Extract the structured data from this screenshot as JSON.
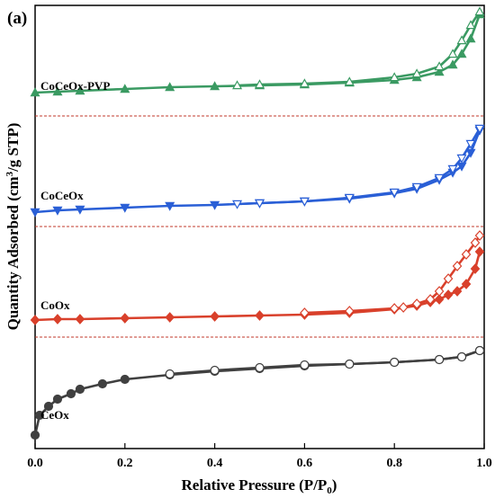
{
  "chart_data": {
    "type": "line",
    "panel_label": "(a)",
    "xlabel": "Relative Pressure (P/P",
    "xlabel_sub": "0",
    "xlabel_end": ")",
    "ylabel": "Quantity Adsorbed (cm",
    "ylabel_sup": "3",
    "ylabel_end": "/g STP)",
    "xlim": [
      0.0,
      1.0
    ],
    "xticks": [
      "0.0",
      "0.2",
      "0.4",
      "0.6",
      "0.8",
      "1.0"
    ],
    "yticks_shown": false,
    "colors": {
      "CeOx": "#404040",
      "CoOx": "#d9402b",
      "CoCeOx": "#2a5fd6",
      "CoCeOx-PVP": "#3a9a62",
      "separator": "#c0392b"
    },
    "series": [
      {
        "name": "CoCeOx-PVP",
        "marker": "triangle",
        "adsorption": {
          "x": [
            0.0,
            0.05,
            0.1,
            0.2,
            0.3,
            0.4,
            0.5,
            0.6,
            0.7,
            0.8,
            0.85,
            0.9,
            0.93,
            0.95,
            0.97,
            0.99
          ],
          "y": [
            103,
            102,
            101,
            99,
            97,
            96,
            95,
            94,
            92,
            89,
            86,
            80,
            72,
            60,
            43,
            16
          ]
        },
        "desorption": {
          "x": [
            0.99,
            0.97,
            0.95,
            0.93,
            0.9,
            0.85,
            0.8,
            0.7,
            0.6,
            0.5,
            0.45
          ],
          "y": [
            13,
            28,
            45,
            60,
            74,
            82,
            86,
            91,
            93,
            94,
            95
          ]
        }
      },
      {
        "name": "CoCeOx",
        "marker": "inverted-triangle",
        "adsorption": {
          "x": [
            0.0,
            0.05,
            0.1,
            0.2,
            0.3,
            0.4,
            0.5,
            0.6,
            0.7,
            0.8,
            0.85,
            0.9,
            0.93,
            0.95,
            0.97,
            0.99
          ],
          "y": [
            236,
            234,
            233,
            231,
            229,
            228,
            226,
            224,
            221,
            215,
            210,
            200,
            192,
            185,
            170,
            145
          ]
        },
        "desorption": {
          "x": [
            0.99,
            0.97,
            0.95,
            0.93,
            0.9,
            0.85,
            0.8,
            0.7,
            0.6,
            0.5,
            0.45
          ],
          "y": [
            143,
            160,
            176,
            188,
            198,
            208,
            214,
            220,
            224,
            226,
            227
          ]
        }
      },
      {
        "name": "CoOx",
        "marker": "diamond",
        "adsorption": {
          "x": [
            0.0,
            0.05,
            0.1,
            0.2,
            0.3,
            0.4,
            0.5,
            0.6,
            0.7,
            0.8,
            0.85,
            0.88,
            0.9,
            0.92,
            0.94,
            0.96,
            0.98,
            0.99
          ],
          "y": [
            356,
            355,
            355,
            354,
            353,
            352,
            351,
            350,
            348,
            344,
            340,
            336,
            333,
            328,
            324,
            316,
            299,
            280
          ]
        },
        "desorption": {
          "x": [
            0.99,
            0.98,
            0.96,
            0.94,
            0.92,
            0.9,
            0.88,
            0.85,
            0.82,
            0.8,
            0.7,
            0.6
          ],
          "y": [
            262,
            270,
            283,
            296,
            310,
            324,
            333,
            338,
            342,
            343,
            346,
            348
          ]
        }
      },
      {
        "name": "CeOx",
        "marker": "circle",
        "adsorption": {
          "x": [
            0.0,
            0.01,
            0.03,
            0.05,
            0.08,
            0.1,
            0.15,
            0.2,
            0.3,
            0.4,
            0.5,
            0.6,
            0.7,
            0.8,
            0.9,
            0.95,
            0.99
          ],
          "y": [
            484,
            462,
            452,
            444,
            438,
            433,
            427,
            422,
            417,
            413,
            410,
            407,
            405,
            403,
            400,
            397,
            390
          ]
        },
        "desorption": {
          "x": [
            0.99,
            0.95,
            0.9,
            0.8,
            0.7,
            0.6,
            0.5,
            0.4,
            0.3
          ],
          "y": [
            390,
            397,
            400,
            403,
            405,
            406,
            409,
            412,
            416
          ]
        }
      }
    ],
    "labels": [
      {
        "text": "CoCeOx-PVP",
        "series": "CoCeOx-PVP"
      },
      {
        "text": "CoCeOx",
        "series": "CoCeOx"
      },
      {
        "text": "CoOx",
        "series": "CoOx"
      },
      {
        "text": "CeOx",
        "series": "CeOx"
      }
    ]
  }
}
